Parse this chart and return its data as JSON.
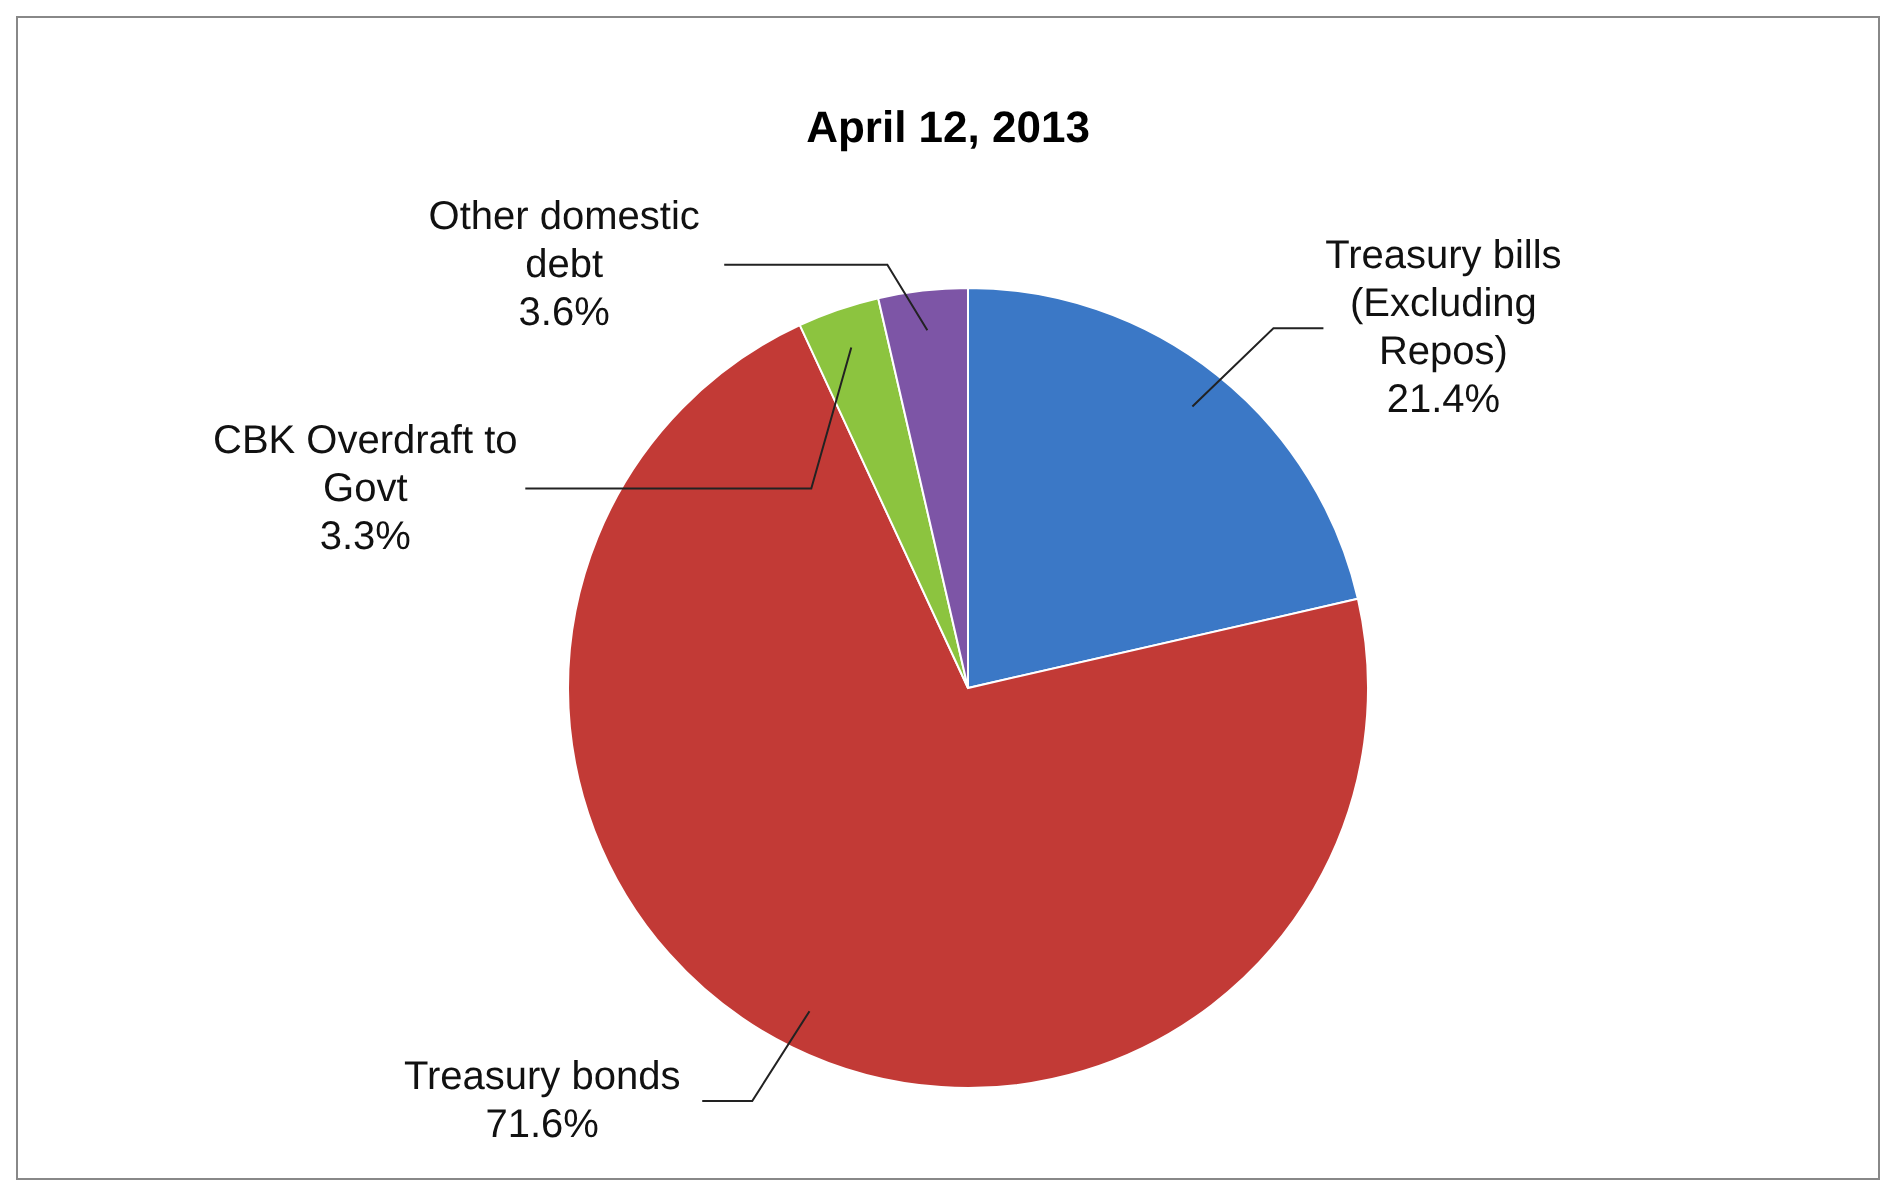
{
  "chart_data": {
    "type": "pie",
    "title": "April 12, 2013",
    "categories": [
      "Treasury bills (Excluding Repos)",
      "Treasury bonds",
      "CBK Overdraft to Govt",
      "Other domestic debt"
    ],
    "values": [
      21.4,
      71.6,
      3.3,
      3.6
    ],
    "value_labels": [
      "21.4%",
      "71.6%",
      "3.3%",
      "3.6%"
    ],
    "colors": [
      "#3b78c6",
      "#c23a36",
      "#8cc43f",
      "#7d55a6"
    ],
    "legend": false
  }
}
